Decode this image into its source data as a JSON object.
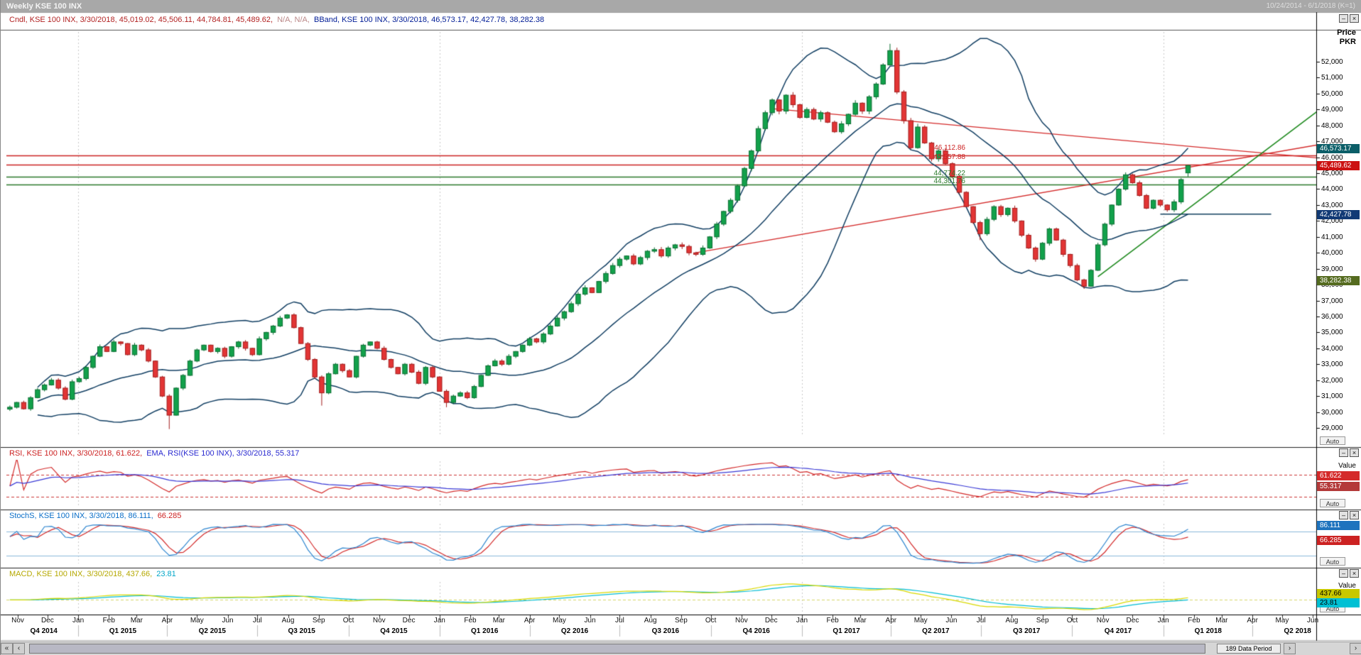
{
  "window": {
    "title": "Weekly KSE 100 INX",
    "date_range": "10/24/2014 - 6/1/2018 (K=1)",
    "buttons": {
      "minimize": "–",
      "close": "×"
    }
  },
  "axis": {
    "price_title_line1": "Price",
    "price_title_line2": "PKR",
    "y_min": 29000,
    "y_max": 52000,
    "y_step": 1000,
    "value_label": "Value",
    "auto_label": "Auto",
    "data_period_label": "189 Data Period"
  },
  "main": {
    "header_parts": [
      {
        "text": "Cndl, KSE 100 INX, 3/30/2018, 45,019.02, 45,506.11, 44,784.81, 45,489.62,",
        "color": "#b22222"
      },
      {
        "text": "N/A, N/A,",
        "color": "#bb8888"
      },
      {
        "text": "BBand, KSE 100 INX, 3/30/2018, 46,573.17, 42,427.78, 38,282.38",
        "color": "#001c96"
      }
    ],
    "price_boxes": [
      {
        "text": "46,573.17",
        "value": 46573.17,
        "bg": "#0b5e68",
        "fg": "#ffffff"
      },
      {
        "text": "45,489.62",
        "value": 45489.62,
        "bg": "#cc1111",
        "fg": "#ffffff"
      },
      {
        "text": "42,427.78",
        "value": 42427.78,
        "bg": "#123a75",
        "fg": "#ffffff"
      },
      {
        "text": "38,282.38",
        "value": 38282.38,
        "bg": "#556b1f",
        "fg": "#ffffff"
      }
    ]
  },
  "rsi": {
    "header_parts": [
      {
        "text": "RSI, KSE 100 INX, 3/30/2018, 61.622,",
        "color": "#cc2222"
      },
      {
        "text": "EMA, RSI(KSE 100 INX), 3/30/2018, 55.317",
        "color": "#2a2ad0"
      }
    ],
    "boxes": [
      {
        "text": "61.622",
        "value": 61.622,
        "bg": "#d42a2a",
        "fg": "#ffffff"
      },
      {
        "text": "55.317",
        "value": 55.317,
        "bg": "#b43a3a",
        "fg": "#ffffff"
      }
    ]
  },
  "stoch": {
    "header_parts": [
      {
        "text": "StochS, KSE 100 INX, 3/30/2018, 86.111,",
        "color": "#0a6ec8"
      },
      {
        "text": "66.285",
        "color": "#cc2222"
      }
    ],
    "boxes": [
      {
        "text": "86.111",
        "value": 86.111,
        "bg": "#1e73be",
        "fg": "#ffffff"
      },
      {
        "text": "66.285",
        "value": 66.285,
        "bg": "#cc2222",
        "fg": "#ffffff"
      }
    ]
  },
  "macd": {
    "header_parts": [
      {
        "text": "MACD, KSE 100 INX, 3/30/2018, 437.66,",
        "color": "#b5a800"
      },
      {
        "text": "23.81",
        "color": "#00a6c8"
      }
    ],
    "boxes": [
      {
        "text": "437.66",
        "value": 437.66,
        "bg": "#c8c800",
        "fg": "#000000"
      },
      {
        "text": "23.81",
        "value": 23.81,
        "bg": "#00c0d4",
        "fg": "#000000"
      }
    ]
  },
  "scrollbar": {
    "buttons": [
      "«",
      "‹",
      "›",
      "›"
    ]
  },
  "chart_data": {
    "type": "candlestick",
    "title": "Weekly KSE 100 INX",
    "symbol": "KSE 100 INX",
    "timeframe": "Weekly",
    "date_range": "10/24/2014 - 6/1/2018",
    "price_axis_title": "Price PKR",
    "y_axis": {
      "min": 29000,
      "max": 52000,
      "step": 1000
    },
    "total_weeks": 189,
    "closes": [
      30300,
      30600,
      30200,
      30900,
      31400,
      31700,
      32000,
      31500,
      30800,
      31900,
      32100,
      32800,
      33500,
      34100,
      33800,
      34400,
      34300,
      33600,
      34200,
      33900,
      33200,
      32200,
      31000,
      29800,
      31500,
      32300,
      33200,
      33900,
      34200,
      33800,
      34000,
      33500,
      34100,
      34400,
      34000,
      33600,
      34600,
      35000,
      35400,
      35900,
      36100,
      35300,
      34300,
      33300,
      32200,
      31200,
      32400,
      33000,
      32600,
      32200,
      33500,
      34200,
      34400,
      34000,
      33300,
      32800,
      32400,
      33000,
      32500,
      31800,
      32800,
      32200,
      31300,
      30600,
      31000,
      31200,
      30900,
      31600,
      32300,
      32900,
      33200,
      33000,
      33500,
      33800,
      34200,
      34600,
      34400,
      34900,
      35400,
      35900,
      36300,
      36800,
      37400,
      37800,
      37500,
      38200,
      38700,
      39200,
      39600,
      39800,
      39300,
      39700,
      40100,
      40200,
      39800,
      40300,
      40500,
      40400,
      40000,
      39900,
      40300,
      41000,
      41800,
      42600,
      43300,
      44200,
      45300,
      46400,
      47800,
      48800,
      49600,
      48900,
      49900,
      49300,
      48500,
      49000,
      48400,
      48800,
      48200,
      47600,
      48100,
      48700,
      49400,
      48900,
      49800,
      50600,
      51800,
      52700,
      50100,
      48300,
      46600,
      47900,
      46900,
      45900,
      46400,
      45600,
      44800,
      43800,
      42900,
      41900,
      41200,
      42100,
      42900,
      42400,
      42800,
      42000,
      41100,
      40300,
      39600,
      40600,
      41500,
      40800,
      39900,
      39200,
      38300,
      37900,
      38900,
      40500,
      41800,
      43000,
      44000,
      44900,
      44400,
      43600,
      42800,
      43300,
      43000,
      42700,
      43200,
      44600,
      45489.62
    ],
    "wick_overrides": {
      "23": {
        "low": 28927
      },
      "45": {
        "low": 30400
      },
      "63": {
        "low": 30300
      },
      "127": {
        "high": 53127
      },
      "140": {
        "low": 40796
      },
      "155": {
        "low": 37736
      }
    },
    "last_candle": {
      "date": "3/30/2018",
      "open": 45019.02,
      "high": 45506.11,
      "low": 44784.81,
      "close": 45489.62
    },
    "bollinger": {
      "period": 20,
      "stddev": 2,
      "last_upper": 46573.17,
      "last_middle": 42427.78,
      "last_lower": 38282.38
    },
    "rsi_meta": {
      "period": 14,
      "last": 61.622,
      "ema_last": 55.317,
      "levels": [
        30,
        70
      ],
      "range": [
        15,
        95
      ]
    },
    "stoch_meta": {
      "last_k": 86.111,
      "last_d": 66.285,
      "levels": [
        20,
        80
      ],
      "range": [
        0,
        100
      ]
    },
    "macd_meta": {
      "fast": 12,
      "slow": 26,
      "signal": 9,
      "last_macd": 437.66,
      "last_signal": 23.81
    },
    "hlines": [
      {
        "value": 46112.86,
        "label": "46,112.86",
        "color": "#cc2222",
        "label_dy": -16
      },
      {
        "value": 45557.88,
        "label": "45,557.88",
        "color": "#cc2222",
        "label_dy": -16
      },
      {
        "value": 44774.22,
        "label": "44,774.22",
        "color": "#2a7a2a",
        "label_dy": -10
      },
      {
        "value": 44301.76,
        "label": "44,301.76",
        "color": "#2a7a2a",
        "label_dy": -10
      }
    ],
    "trendlines": [
      {
        "w1": 99,
        "p1": 40000,
        "w2": 189,
        "p2": 46800,
        "color": "#d42a2a",
        "width": 1.3
      },
      {
        "w1": 110,
        "p1": 49050,
        "w2": 189,
        "p2": 45950,
        "color": "#d42a2a",
        "width": 1.3
      },
      {
        "w1": 157,
        "p1": 38500,
        "w2": 189,
        "p2": 49000,
        "color": "#1e8a1e",
        "width": 1.6
      }
    ],
    "support_segment": {
      "w1": 166,
      "w2": 182,
      "value": 42427.78,
      "color": "#12405e",
      "width": 1.6
    },
    "year_gridlines": [
      9.86,
      62.0,
      114.29,
      166.43
    ],
    "months": [
      [
        "Nov",
        1.14
      ],
      [
        "Dec",
        5.43
      ],
      [
        "Jan",
        9.86
      ],
      [
        "Feb",
        14.29
      ],
      [
        "Mar",
        18.29
      ],
      [
        "Apr",
        22.71
      ],
      [
        "May",
        27.0
      ],
      [
        "Jun",
        31.43
      ],
      [
        "Jul",
        35.71
      ],
      [
        "Aug",
        40.14
      ],
      [
        "Sep",
        44.57
      ],
      [
        "Oct",
        48.86
      ],
      [
        "Nov",
        53.29
      ],
      [
        "Dec",
        57.57
      ],
      [
        "Jan",
        62.0
      ],
      [
        "Feb",
        66.43
      ],
      [
        "Mar",
        70.57
      ],
      [
        "Apr",
        75.0
      ],
      [
        "May",
        79.29
      ],
      [
        "Jun",
        83.71
      ],
      [
        "Jul",
        88.0
      ],
      [
        "Aug",
        92.43
      ],
      [
        "Sep",
        96.86
      ],
      [
        "Oct",
        101.14
      ],
      [
        "Nov",
        105.57
      ],
      [
        "Dec",
        109.86
      ],
      [
        "Jan",
        114.29
      ],
      [
        "Feb",
        118.71
      ],
      [
        "Mar",
        122.71
      ],
      [
        "Apr",
        127.14
      ],
      [
        "May",
        131.43
      ],
      [
        "Jun",
        135.86
      ],
      [
        "Jul",
        140.14
      ],
      [
        "Aug",
        144.57
      ],
      [
        "Sep",
        149.0
      ],
      [
        "Oct",
        153.29
      ],
      [
        "Nov",
        157.71
      ],
      [
        "Dec",
        162.0
      ],
      [
        "Jan",
        166.43
      ],
      [
        "Feb",
        170.86
      ],
      [
        "Mar",
        174.86
      ],
      [
        "Apr",
        179.29
      ],
      [
        "May",
        183.57
      ],
      [
        "Jun",
        188.0
      ]
    ],
    "quarters": [
      [
        "Q4 2014",
        4.9
      ],
      [
        "Q1 2015",
        16.3
      ],
      [
        "Q2 2015",
        29.2
      ],
      [
        "Q3 2015",
        42.1
      ],
      [
        "Q4 2015",
        55.4
      ],
      [
        "Q1 2016",
        68.5
      ],
      [
        "Q2 2016",
        81.5
      ],
      [
        "Q3 2016",
        94.6
      ],
      [
        "Q4 2016",
        107.7
      ],
      [
        "Q1 2017",
        120.7
      ],
      [
        "Q2 2017",
        133.6
      ],
      [
        "Q3 2017",
        146.7
      ],
      [
        "Q4 2017",
        159.9
      ],
      [
        "Q1 2018",
        172.9
      ],
      [
        "Q2 2018",
        185.8
      ]
    ]
  }
}
